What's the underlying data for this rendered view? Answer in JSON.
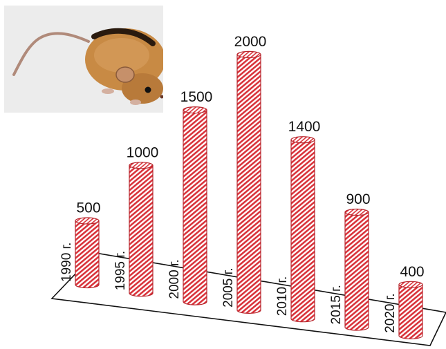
{
  "chart_data": {
    "type": "bar",
    "style": "3d-cylinders",
    "categories": [
      "1990 г.",
      "1995 г.",
      "2000 г.",
      "2005 г.",
      "2010 г.",
      "2015 г.",
      "2020 г."
    ],
    "values": [
      500,
      1000,
      1500,
      2000,
      1400,
      900,
      400
    ],
    "value_labels": [
      "500",
      "1000",
      "1500",
      "2000",
      "1400",
      "900",
      "400"
    ],
    "title": "",
    "xlabel": "",
    "ylabel": "",
    "ylim": [
      0,
      2000
    ],
    "grid": false,
    "legend": "none",
    "bar_color": "#d9323a",
    "illustration": "mouse-photo"
  }
}
